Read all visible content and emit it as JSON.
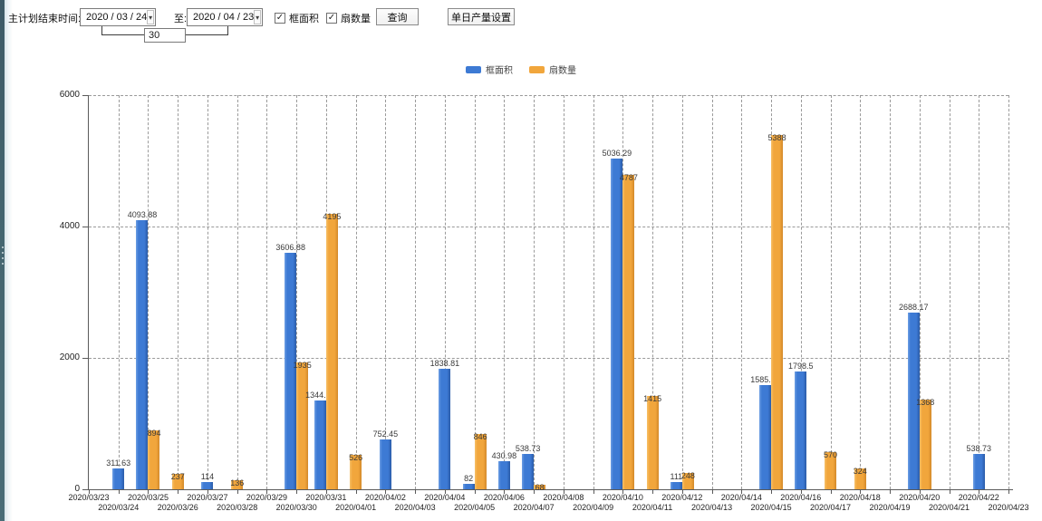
{
  "toolbar": {
    "range_label": "主计划结束时间:",
    "start_date": "2020 / 03 / 24",
    "to_label": "至:",
    "end_date": "2020 / 04 / 23",
    "days_between": "30",
    "checkbox_frame_area": "框面积",
    "checkbox_sash_count": "扇数量",
    "query_button": "查询",
    "daily_output_button": "单日产量设置"
  },
  "icons": {
    "check": "✓",
    "dropdown_arrow": "▾"
  },
  "colors": {
    "frame_area": "#3d7ad4",
    "sash_count": "#f1a63c"
  },
  "legend": [
    {
      "label": "框面积",
      "color": "#3d7ad4"
    },
    {
      "label": "扇数量",
      "color": "#f1a63c"
    }
  ],
  "chart_data": {
    "type": "bar",
    "title": "",
    "xlabel": "",
    "ylabel": "",
    "ylim": [
      0,
      6000
    ],
    "yticks": [
      0,
      2000,
      4000,
      6000
    ],
    "grid": "dashed-both",
    "legend_position": "top-center",
    "categories": [
      "2020/03/23",
      "2020/03/24",
      "2020/03/25",
      "2020/03/26",
      "2020/03/27",
      "2020/03/28",
      "2020/03/29",
      "2020/03/30",
      "2020/03/31",
      "2020/04/01",
      "2020/04/02",
      "2020/04/03",
      "2020/04/04",
      "2020/04/05",
      "2020/04/06",
      "2020/04/07",
      "2020/04/08",
      "2020/04/09",
      "2020/04/10",
      "2020/04/11",
      "2020/04/12",
      "2020/04/13",
      "2020/04/14",
      "2020/04/15",
      "2020/04/16",
      "2020/04/17",
      "2020/04/18",
      "2020/04/19",
      "2020/04/20",
      "2020/04/21",
      "2020/04/22",
      "2020/04/23"
    ],
    "series": [
      {
        "name": "框面积",
        "color": "#3d7ad4",
        "values": [
          null,
          311.63,
          4093.88,
          null,
          114,
          null,
          null,
          3606.88,
          1344.95,
          null,
          752.45,
          null,
          1838.81,
          82,
          430.98,
          538.73,
          null,
          null,
          5036.29,
          null,
          111,
          null,
          null,
          1585.96,
          1798.5,
          null,
          null,
          null,
          2688.17,
          null,
          538.73,
          null
        ]
      },
      {
        "name": "扇数量",
        "color": "#f1a63c",
        "values": [
          null,
          null,
          894,
          237,
          null,
          136,
          null,
          1935,
          4195,
          526,
          null,
          null,
          null,
          846,
          null,
          68,
          null,
          null,
          4787,
          1415,
          248,
          null,
          null,
          5388,
          null,
          570,
          324,
          null,
          1368,
          null,
          null,
          null
        ]
      }
    ]
  }
}
